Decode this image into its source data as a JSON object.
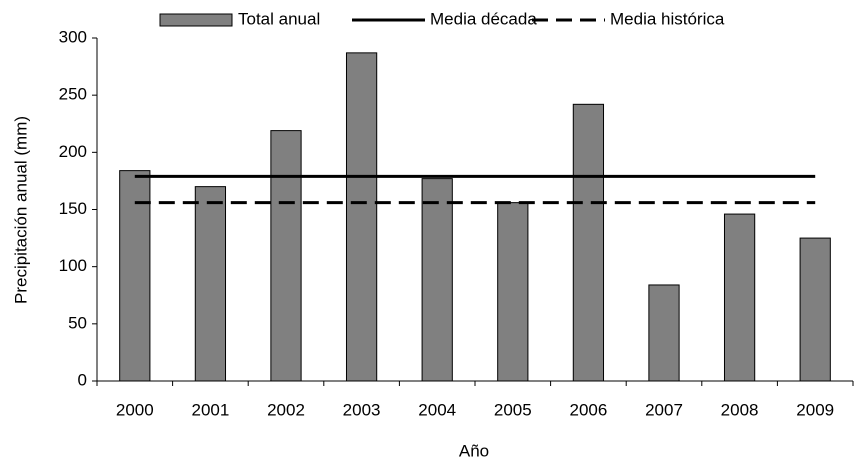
{
  "chart_data": {
    "type": "bar",
    "x_label": "Año",
    "y_label": "Precipitación anual (mm)",
    "categories": [
      "2000",
      "2001",
      "2002",
      "2003",
      "2004",
      "2005",
      "2006",
      "2007",
      "2008",
      "2009"
    ],
    "series": [
      {
        "name": "Total anual",
        "type": "bar",
        "color": "#808080",
        "values": [
          184,
          170,
          219,
          287,
          177,
          156,
          242,
          84,
          146,
          125
        ]
      },
      {
        "name": "Media década",
        "type": "line",
        "color": "#000000",
        "dashed": false,
        "values": [
          179,
          179,
          179,
          179,
          179,
          179,
          179,
          179,
          179,
          179
        ]
      },
      {
        "name": "Media histórica",
        "type": "line",
        "color": "#000000",
        "dashed": true,
        "values": [
          156,
          156,
          156,
          156,
          156,
          156,
          156,
          156,
          156,
          156
        ]
      }
    ],
    "ylim": [
      0,
      300
    ],
    "yticks": [
      0,
      50,
      100,
      150,
      200,
      250,
      300
    ],
    "grid": false,
    "legend": "top"
  }
}
